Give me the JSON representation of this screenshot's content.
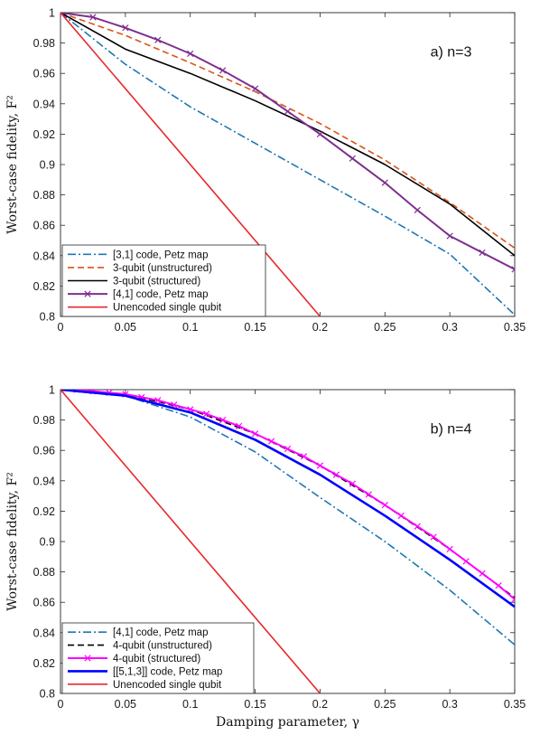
{
  "chart_data": [
    {
      "type": "line",
      "annotation": "a) n=3",
      "ylabel": "Worst-case fidelity, F²",
      "xlabel": "",
      "xlim": [
        0,
        0.35
      ],
      "ylim": [
        0.8,
        1.0
      ],
      "xticks": [
        "0",
        "0.05",
        "0.1",
        "0.15",
        "0.2",
        "0.25",
        "0.3",
        "0.35"
      ],
      "yticks": [
        "0.8",
        "0.82",
        "0.84",
        "0.86",
        "0.88",
        "0.9",
        "0.92",
        "0.94",
        "0.96",
        "0.98",
        "1"
      ],
      "grid": false,
      "legend_position": "bottom-left",
      "series": [
        {
          "name": "[3,1] code, Petz map",
          "color": "#1f77b4",
          "dash": "dashdot",
          "x": [
            0,
            0.05,
            0.1,
            0.15,
            0.2,
            0.25,
            0.3,
            0.35
          ],
          "y": [
            1.0,
            0.966,
            0.938,
            0.914,
            0.89,
            0.866,
            0.841,
            0.801
          ]
        },
        {
          "name": "3-qubit (unstructured)",
          "color": "#d95319",
          "dash": "dashed",
          "x": [
            0,
            0.05,
            0.1,
            0.15,
            0.2,
            0.25,
            0.3,
            0.35
          ],
          "y": [
            1.0,
            0.985,
            0.967,
            0.948,
            0.927,
            0.903,
            0.875,
            0.845
          ]
        },
        {
          "name": "3-qubit (structured)",
          "color": "#000000",
          "dash": "solid",
          "x": [
            0,
            0.05,
            0.1,
            0.15,
            0.2,
            0.25,
            0.3,
            0.35
          ],
          "y": [
            1.0,
            0.976,
            0.96,
            0.942,
            0.922,
            0.9,
            0.874,
            0.84
          ]
        },
        {
          "name": "[4,1] code, Petz map",
          "color": "#7e2f8e",
          "dash": "solid",
          "marker": "x",
          "x": [
            0,
            0.025,
            0.05,
            0.075,
            0.1,
            0.125,
            0.15,
            0.175,
            0.2,
            0.225,
            0.25,
            0.275,
            0.3,
            0.325,
            0.35
          ],
          "y": [
            1.0,
            0.997,
            0.99,
            0.982,
            0.973,
            0.962,
            0.95,
            0.935,
            0.92,
            0.904,
            0.888,
            0.87,
            0.853,
            0.842,
            0.831
          ]
        },
        {
          "name": "Unencoded single qubit",
          "color": "#e8282b",
          "dash": "solid",
          "x": [
            0,
            0.2
          ],
          "y": [
            1.0,
            0.8
          ]
        }
      ]
    },
    {
      "type": "line",
      "annotation": "b) n=4",
      "ylabel": "Worst-case fidelity, F²",
      "xlabel": "Damping parameter, γ",
      "xlim": [
        0,
        0.35
      ],
      "ylim": [
        0.8,
        1.0
      ],
      "xticks": [
        "0",
        "0.05",
        "0.1",
        "0.15",
        "0.2",
        "0.25",
        "0.3",
        "0.35"
      ],
      "yticks": [
        "0.8",
        "0.82",
        "0.84",
        "0.86",
        "0.88",
        "0.9",
        "0.92",
        "0.94",
        "0.96",
        "0.98",
        "1"
      ],
      "grid": false,
      "legend_position": "bottom-left",
      "series": [
        {
          "name": "[4,1] code, Petz map",
          "color": "#1f77b4",
          "dash": "dashdot",
          "x": [
            0,
            0.05,
            0.1,
            0.15,
            0.2,
            0.25,
            0.3,
            0.35
          ],
          "y": [
            1.0,
            0.996,
            0.982,
            0.959,
            0.929,
            0.9,
            0.868,
            0.832
          ]
        },
        {
          "name": "4-qubit (unstructured)",
          "color": "#000000",
          "dash": "dashed",
          "x": [
            0,
            0.05,
            0.1,
            0.15,
            0.2,
            0.25,
            0.3,
            0.35
          ],
          "y": [
            1.0,
            0.997,
            0.987,
            0.971,
            0.95,
            0.924,
            0.895,
            0.863
          ]
        },
        {
          "name": "4-qubit (structured)",
          "color": "#ff00ff",
          "dash": "solid",
          "marker": "x",
          "x": [
            0,
            0.0125,
            0.025,
            0.0375,
            0.05,
            0.0625,
            0.075,
            0.0875,
            0.1,
            0.1125,
            0.125,
            0.1375,
            0.15,
            0.1625,
            0.175,
            0.1875,
            0.2,
            0.2125,
            0.225,
            0.2375,
            0.25,
            0.2625,
            0.275,
            0.2875,
            0.3,
            0.3125,
            0.325,
            0.3375,
            0.35
          ],
          "y": [
            1.0,
            1.0,
            0.999,
            0.998,
            0.997,
            0.995,
            0.993,
            0.99,
            0.987,
            0.984,
            0.98,
            0.976,
            0.971,
            0.966,
            0.961,
            0.956,
            0.95,
            0.944,
            0.938,
            0.931,
            0.924,
            0.917,
            0.91,
            0.903,
            0.895,
            0.887,
            0.879,
            0.871,
            0.862
          ]
        },
        {
          "name": "[[5,1,3]] code, Petz map",
          "color": "#0000ff",
          "dash": "solid",
          "width": 2.6,
          "x": [
            0,
            0.05,
            0.1,
            0.15,
            0.2,
            0.25,
            0.3,
            0.35
          ],
          "y": [
            1.0,
            0.996,
            0.985,
            0.967,
            0.944,
            0.917,
            0.888,
            0.857
          ]
        },
        {
          "name": "Unencoded single qubit",
          "color": "#e8282b",
          "dash": "solid",
          "x": [
            0,
            0.2
          ],
          "y": [
            1.0,
            0.8
          ]
        }
      ]
    }
  ]
}
